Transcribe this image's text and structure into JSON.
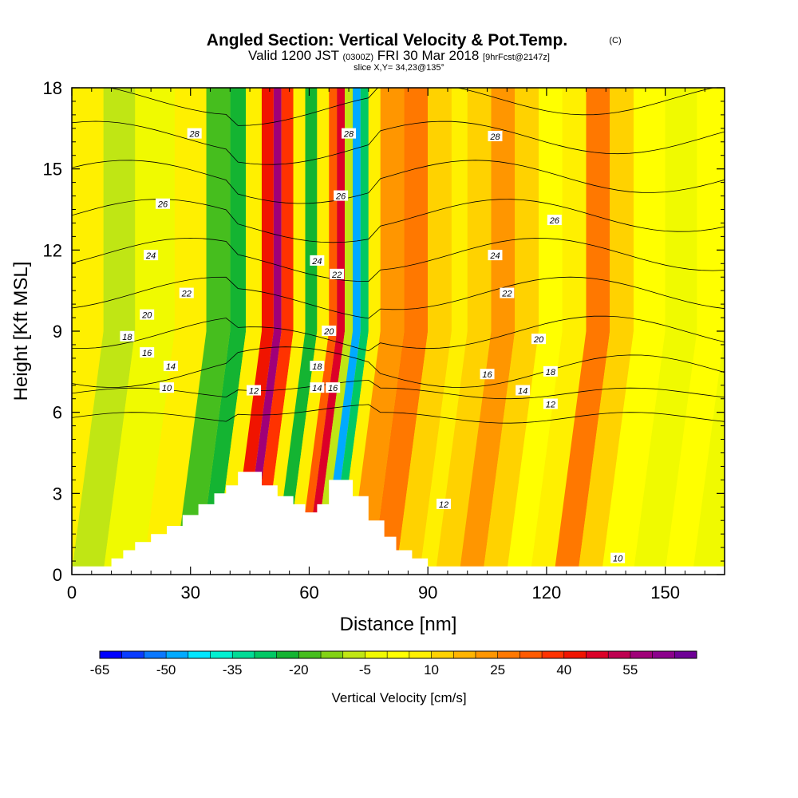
{
  "chart_data": {
    "type": "heatmap",
    "title": "Angled Section: Vertical Velocity & Pot.Temp.",
    "title_mark": "(C)",
    "subtitle_parts": [
      "Valid 1200 JST",
      "(0300Z)",
      "FRI 30 Mar 2018",
      "[9hrFcst@2147z]"
    ],
    "slice_text": "slice X,Y= 34,23@135°",
    "xlabel": "Distance [nm]",
    "ylabel": "Height [Kft MSL]",
    "xlim": [
      0,
      165
    ],
    "ylim": [
      0,
      18
    ],
    "x_ticks": [
      0,
      30,
      60,
      90,
      120,
      150
    ],
    "y_ticks": [
      0,
      3,
      6,
      9,
      12,
      15,
      18
    ],
    "colorbar": {
      "label": "Vertical Velocity [cm/s]",
      "tick_labels": [
        "-65",
        "-50",
        "-35",
        "-20",
        "-5",
        "10",
        "25",
        "40",
        "55"
      ],
      "min": -65,
      "max": 65,
      "step": 5,
      "colors": [
        "#0000ff",
        "#0a3cff",
        "#0a78ff",
        "#00aaff",
        "#00e6ff",
        "#00f0d2",
        "#00dc96",
        "#00c864",
        "#14b432",
        "#46be1e",
        "#82d214",
        "#c0e614",
        "#f0fa00",
        "#ffff00",
        "#fff000",
        "#ffd200",
        "#ffb400",
        "#ff9600",
        "#ff7800",
        "#ff5a00",
        "#ff3200",
        "#f01400",
        "#dc0028",
        "#be0050",
        "#a00078",
        "#8c008c",
        "#6e0096"
      ]
    },
    "bands": [
      {
        "x_range": [
          0,
          8
        ],
        "w": 5
      },
      {
        "x_range": [
          8,
          16
        ],
        "w": -8
      },
      {
        "x_range": [
          16,
          26
        ],
        "w": -3
      },
      {
        "x_range": [
          26,
          34
        ],
        "w": 8
      },
      {
        "x_range": [
          34,
          40
        ],
        "w": -18
      },
      {
        "x_range": [
          40,
          44
        ],
        "w": -22
      },
      {
        "x_range": [
          44,
          48
        ],
        "w": 5
      },
      {
        "x_range": [
          48,
          51
        ],
        "w": 40
      },
      {
        "x_range": [
          51,
          53
        ],
        "w": 58
      },
      {
        "x_range": [
          53,
          56
        ],
        "w": 35
      },
      {
        "x_range": [
          56,
          59
        ],
        "w": 8
      },
      {
        "x_range": [
          59,
          62
        ],
        "w": -22
      },
      {
        "x_range": [
          62,
          65
        ],
        "w": 5
      },
      {
        "x_range": [
          65,
          67
        ],
        "w": 30
      },
      {
        "x_range": [
          67,
          69
        ],
        "w": 45
      },
      {
        "x_range": [
          69,
          71
        ],
        "w": -10
      },
      {
        "x_range": [
          71,
          73
        ],
        "w": -50
      },
      {
        "x_range": [
          73,
          75
        ],
        "w": -30
      },
      {
        "x_range": [
          75,
          78
        ],
        "w": 5
      },
      {
        "x_range": [
          78,
          84
        ],
        "w": 20
      },
      {
        "x_range": [
          84,
          90
        ],
        "w": 28
      },
      {
        "x_range": [
          90,
          96
        ],
        "w": 12
      },
      {
        "x_range": [
          96,
          100
        ],
        "w": 5
      },
      {
        "x_range": [
          100,
          106
        ],
        "w": 12
      },
      {
        "x_range": [
          106,
          112
        ],
        "w": 22
      },
      {
        "x_range": [
          112,
          118
        ],
        "w": 10
      },
      {
        "x_range": [
          118,
          124
        ],
        "w": 2
      },
      {
        "x_range": [
          124,
          130
        ],
        "w": 8
      },
      {
        "x_range": [
          130,
          136
        ],
        "w": 25
      },
      {
        "x_range": [
          136,
          142
        ],
        "w": 12
      },
      {
        "x_range": [
          142,
          150
        ],
        "w": 4
      },
      {
        "x_range": [
          150,
          158
        ],
        "w": -4
      },
      {
        "x_range": [
          158,
          165
        ],
        "w": 2
      }
    ],
    "contour_levels": [
      10,
      12,
      14,
      16,
      18,
      20,
      22,
      24,
      26,
      28
    ],
    "contour_labels": [
      {
        "text": "28",
        "x": 31,
        "y": 16.3
      },
      {
        "text": "28",
        "x": 70,
        "y": 16.3
      },
      {
        "text": "28",
        "x": 107,
        "y": 16.2
      },
      {
        "text": "26",
        "x": 23,
        "y": 13.7
      },
      {
        "text": "26",
        "x": 68,
        "y": 14.0
      },
      {
        "text": "26",
        "x": 122,
        "y": 13.1
      },
      {
        "text": "24",
        "x": 20,
        "y": 11.8
      },
      {
        "text": "24",
        "x": 62,
        "y": 11.6
      },
      {
        "text": "24",
        "x": 107,
        "y": 11.8
      },
      {
        "text": "22",
        "x": 29,
        "y": 10.4
      },
      {
        "text": "22",
        "x": 67,
        "y": 11.1
      },
      {
        "text": "22",
        "x": 110,
        "y": 10.4
      },
      {
        "text": "20",
        "x": 19,
        "y": 9.6
      },
      {
        "text": "20",
        "x": 65,
        "y": 9.0
      },
      {
        "text": "20",
        "x": 118,
        "y": 8.7
      },
      {
        "text": "18",
        "x": 14,
        "y": 8.8
      },
      {
        "text": "18",
        "x": 62,
        "y": 7.7
      },
      {
        "text": "18",
        "x": 121,
        "y": 7.5
      },
      {
        "text": "16",
        "x": 19,
        "y": 8.2
      },
      {
        "text": "16",
        "x": 66,
        "y": 6.9
      },
      {
        "text": "16",
        "x": 105,
        "y": 7.4
      },
      {
        "text": "14",
        "x": 25,
        "y": 7.7
      },
      {
        "text": "14",
        "x": 62,
        "y": 6.9
      },
      {
        "text": "14",
        "x": 114,
        "y": 6.8
      },
      {
        "text": "12",
        "x": 46,
        "y": 6.8
      },
      {
        "text": "12",
        "x": 121,
        "y": 6.3
      },
      {
        "text": "12",
        "x": 94,
        "y": 2.6
      },
      {
        "text": "10",
        "x": 24,
        "y": 6.9
      },
      {
        "text": "10",
        "x": 138,
        "y": 0.6
      }
    ],
    "terrain_profile": [
      [
        0,
        0.3
      ],
      [
        10,
        0.3
      ],
      [
        10,
        0.6
      ],
      [
        13,
        0.6
      ],
      [
        13,
        0.9
      ],
      [
        16,
        0.9
      ],
      [
        16,
        1.2
      ],
      [
        20,
        1.2
      ],
      [
        20,
        1.5
      ],
      [
        24,
        1.5
      ],
      [
        24,
        1.8
      ],
      [
        28,
        1.8
      ],
      [
        28,
        2.2
      ],
      [
        32,
        2.2
      ],
      [
        32,
        2.6
      ],
      [
        36,
        2.6
      ],
      [
        36,
        3.0
      ],
      [
        39,
        3.0
      ],
      [
        39,
        3.3
      ],
      [
        42,
        3.3
      ],
      [
        42,
        3.8
      ],
      [
        48,
        3.8
      ],
      [
        48,
        3.3
      ],
      [
        52,
        3.3
      ],
      [
        52,
        2.9
      ],
      [
        56,
        2.9
      ],
      [
        56,
        2.6
      ],
      [
        59,
        2.6
      ],
      [
        59,
        2.3
      ],
      [
        62,
        2.3
      ],
      [
        62,
        2.6
      ],
      [
        65,
        2.6
      ],
      [
        65,
        3.5
      ],
      [
        71,
        3.5
      ],
      [
        71,
        2.9
      ],
      [
        75,
        2.9
      ],
      [
        75,
        2.0
      ],
      [
        79,
        2.0
      ],
      [
        79,
        1.4
      ],
      [
        82,
        1.4
      ],
      [
        82,
        0.9
      ],
      [
        86,
        0.9
      ],
      [
        86,
        0.6
      ],
      [
        90,
        0.6
      ],
      [
        90,
        0.3
      ],
      [
        165,
        0.3
      ]
    ]
  }
}
